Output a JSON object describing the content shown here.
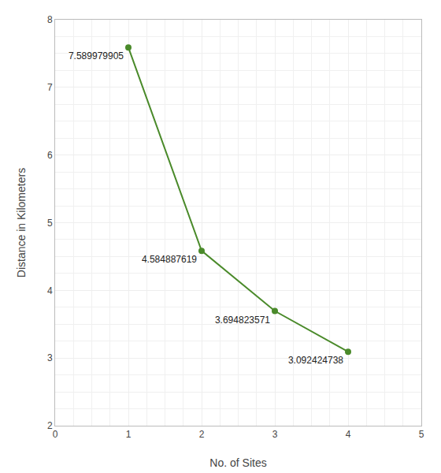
{
  "chart_data": {
    "type": "line",
    "x": [
      1,
      2,
      3,
      4
    ],
    "values": [
      7.589979905,
      4.584887619,
      3.694823571,
      3.092424738
    ],
    "color": "#4a8a2a",
    "marker": "circle",
    "line_style": "solid",
    "data_labels": true,
    "xlabel": "No. of Sites",
    "ylabel": "Distance in Kilometers",
    "xlim": [
      0,
      5
    ],
    "ylim": [
      2,
      8
    ],
    "xticks": [
      0,
      1,
      2,
      3,
      4,
      5
    ],
    "yticks": [
      2,
      3,
      4,
      5,
      6,
      7,
      8
    ],
    "grid": true
  }
}
